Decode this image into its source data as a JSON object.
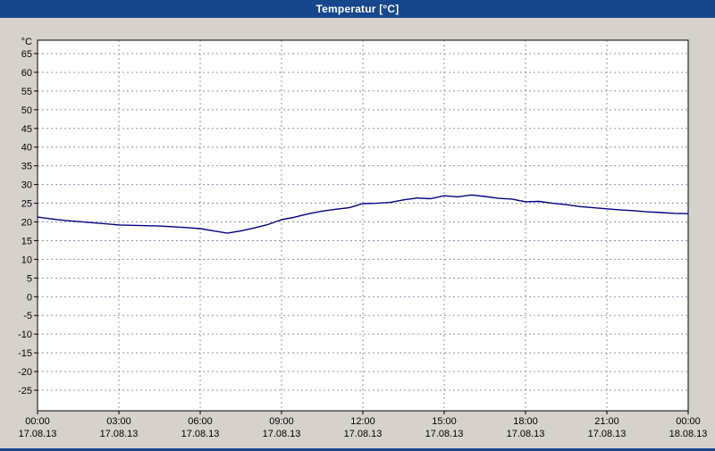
{
  "window": {
    "title": "Temperatur [°C]"
  },
  "colors": {
    "titlebar": "#17478d",
    "background": "#d6d2cb",
    "plot_background": "#ffffff",
    "plot_border": "#000000",
    "grid": "#8c90ae",
    "line": "#000080",
    "axis_text": "#000000"
  },
  "chart_data": {
    "type": "line",
    "title": "Temperatur [°C]",
    "ylabel": "°C",
    "xlabel": "",
    "ylim": [
      -25,
      65
    ],
    "xlim_hours": [
      0,
      24
    ],
    "grid": true,
    "legend_position": "none",
    "y_ticks": [
      65,
      60,
      55,
      50,
      45,
      40,
      35,
      30,
      25,
      20,
      15,
      10,
      5,
      0,
      -5,
      -10,
      -15,
      -20,
      -25
    ],
    "x_ticks": [
      {
        "time": "00:00",
        "date": "17.08.13",
        "hour": 0
      },
      {
        "time": "03:00",
        "date": "17.08.13",
        "hour": 3
      },
      {
        "time": "06:00",
        "date": "17.08.13",
        "hour": 6
      },
      {
        "time": "09:00",
        "date": "17.08.13",
        "hour": 9
      },
      {
        "time": "12:00",
        "date": "17.08.13",
        "hour": 12
      },
      {
        "time": "15:00",
        "date": "17.08.13",
        "hour": 15
      },
      {
        "time": "18:00",
        "date": "17.08.13",
        "hour": 18
      },
      {
        "time": "21:00",
        "date": "17.08.13",
        "hour": 21
      },
      {
        "time": "00:00",
        "date": "18.08.13",
        "hour": 24
      }
    ],
    "series": [
      {
        "name": "Temperatur",
        "color": "#000080",
        "points": [
          [
            0.0,
            21.3
          ],
          [
            0.5,
            20.8
          ],
          [
            1.0,
            20.4
          ],
          [
            1.5,
            20.1
          ],
          [
            2.0,
            19.8
          ],
          [
            2.5,
            19.5
          ],
          [
            3.0,
            19.2
          ],
          [
            3.5,
            19.1
          ],
          [
            4.0,
            19.0
          ],
          [
            4.5,
            18.9
          ],
          [
            5.0,
            18.7
          ],
          [
            5.5,
            18.5
          ],
          [
            6.0,
            18.2
          ],
          [
            6.5,
            17.6
          ],
          [
            7.0,
            17.0
          ],
          [
            7.5,
            17.6
          ],
          [
            8.0,
            18.4
          ],
          [
            8.5,
            19.3
          ],
          [
            9.0,
            20.6
          ],
          [
            9.5,
            21.3
          ],
          [
            10.0,
            22.2
          ],
          [
            10.5,
            22.9
          ],
          [
            11.0,
            23.4
          ],
          [
            11.5,
            23.8
          ],
          [
            12.0,
            24.9
          ],
          [
            12.5,
            25.0
          ],
          [
            13.0,
            25.2
          ],
          [
            13.5,
            25.9
          ],
          [
            14.0,
            26.4
          ],
          [
            14.5,
            26.2
          ],
          [
            15.0,
            27.0
          ],
          [
            15.5,
            26.7
          ],
          [
            16.0,
            27.2
          ],
          [
            16.5,
            26.8
          ],
          [
            17.0,
            26.3
          ],
          [
            17.5,
            26.1
          ],
          [
            18.0,
            25.4
          ],
          [
            18.5,
            25.5
          ],
          [
            19.0,
            25.0
          ],
          [
            19.5,
            24.6
          ],
          [
            20.0,
            24.1
          ],
          [
            20.5,
            23.8
          ],
          [
            21.0,
            23.5
          ],
          [
            21.5,
            23.2
          ],
          [
            22.0,
            23.0
          ],
          [
            22.5,
            22.7
          ],
          [
            23.0,
            22.5
          ],
          [
            23.5,
            22.3
          ],
          [
            24.0,
            22.2
          ]
        ]
      }
    ]
  }
}
